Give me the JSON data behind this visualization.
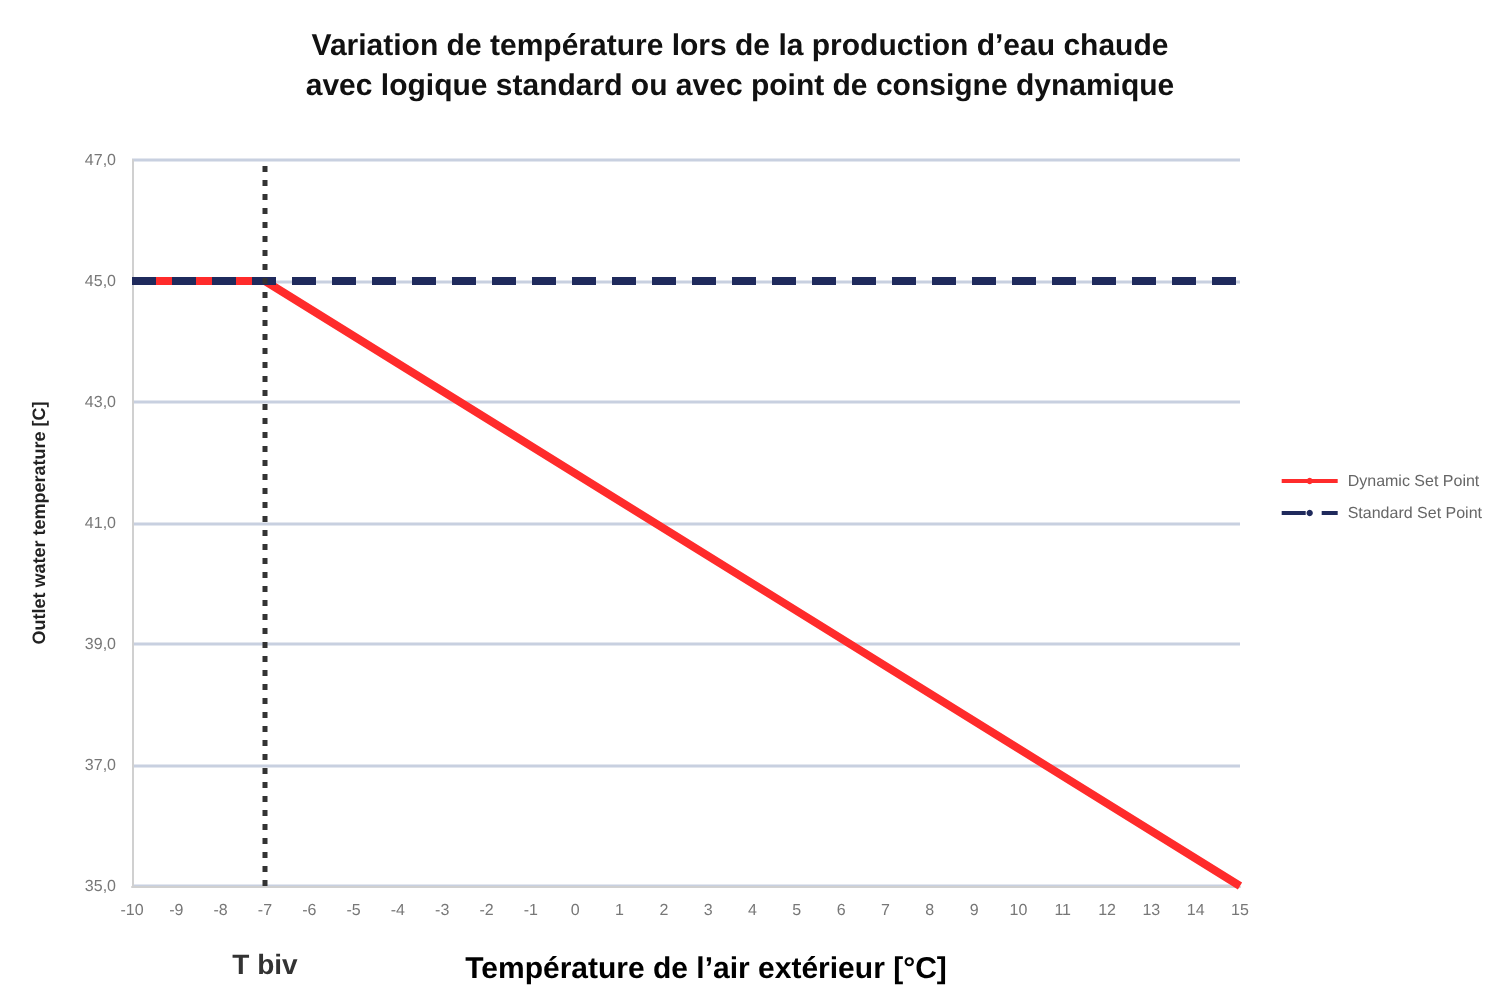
{
  "chart_data": {
    "type": "line",
    "title": "Variation de température lors de la production d’eau chaude\navec logique standard ou avec point de consigne dynamique",
    "xlabel": "Température de l’air extérieur [°C]",
    "ylabel": "Outlet water temperature [C]",
    "series": [
      {
        "name": "Dynamic Set Point",
        "color": "#ff2b2b",
        "line_style": "solid",
        "x": [
          -10,
          -7,
          15
        ],
        "values": [
          45,
          45,
          35
        ]
      },
      {
        "name": "Standard Set Point",
        "color": "#1f2a5c",
        "line_style": "dashed",
        "x": [
          -10,
          15
        ],
        "values": [
          45,
          45
        ]
      }
    ],
    "xlim": [
      -10,
      15
    ],
    "xticks": [
      -10,
      -9,
      -8,
      -7,
      -6,
      -5,
      -4,
      -3,
      -2,
      -1,
      0,
      1,
      2,
      3,
      4,
      5,
      6,
      7,
      8,
      9,
      10,
      11,
      12,
      13,
      14,
      15
    ],
    "ylim": [
      35,
      47
    ],
    "yticks": [
      {
        "value": 35,
        "label": "35,0"
      },
      {
        "value": 37,
        "label": "37,0"
      },
      {
        "value": 39,
        "label": "39,0"
      },
      {
        "value": 41,
        "label": "41,0"
      },
      {
        "value": 43,
        "label": "43,0"
      },
      {
        "value": 45,
        "label": "45,0"
      },
      {
        "value": 47,
        "label": "47,0"
      }
    ],
    "ref_lines": [
      {
        "axis": "x",
        "value": -7,
        "label": "T biv",
        "color": "#333333",
        "line_style": "dotted"
      }
    ],
    "grid": "y",
    "legend": "right",
    "marker": "none"
  }
}
